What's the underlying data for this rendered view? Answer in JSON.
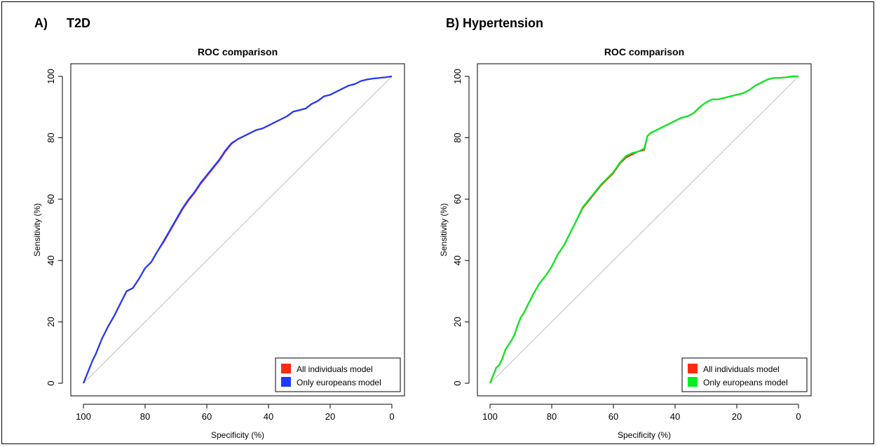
{
  "panels": {
    "a_label": "A)",
    "a_title": "T2D",
    "b_label": "B) Hypertension"
  },
  "chart_data": [
    {
      "type": "line",
      "title": "ROC comparison",
      "xlabel": "Specificity (%)",
      "ylabel": "Sensitivity (%)",
      "xlim": [
        100,
        0
      ],
      "ylim": [
        0,
        100
      ],
      "x_ticks": [
        100,
        80,
        60,
        40,
        20,
        0
      ],
      "y_ticks": [
        0,
        20,
        40,
        60,
        80,
        100
      ],
      "legend_position": "bottom-right",
      "diagonal_color": "#c8c8c8",
      "series": [
        {
          "name": "All individuals model",
          "color": "#ff2a12",
          "x": [
            100,
            99,
            98,
            97,
            96,
            95,
            94,
            92,
            90,
            88,
            86,
            84,
            82,
            80,
            78,
            76,
            74,
            72,
            70,
            68,
            66,
            64,
            62,
            60,
            58,
            56,
            54,
            52,
            50,
            48,
            46,
            44,
            42,
            40,
            38,
            36,
            34,
            32,
            30,
            28,
            26,
            24,
            22,
            20,
            18,
            16,
            14,
            12,
            10,
            8,
            6,
            4,
            2,
            0
          ],
          "y": [
            0,
            2.5,
            5,
            7.5,
            9.5,
            12,
            14.5,
            18.5,
            22,
            26,
            30,
            31,
            34,
            37.5,
            39.5,
            43,
            46,
            49.5,
            53,
            56.5,
            59.5,
            62,
            65,
            67.5,
            70,
            72.5,
            75.5,
            78,
            79.5,
            80.5,
            81.5,
            82.5,
            83,
            84,
            85,
            86,
            87,
            88.5,
            89,
            89.5,
            91,
            92,
            93.5,
            94,
            95,
            96,
            97,
            97.5,
            98.5,
            99,
            99.3,
            99.5,
            99.7,
            100
          ]
        },
        {
          "name": "Only europeans model",
          "color": "#1c3cff",
          "x": [
            100,
            99,
            98,
            97,
            96,
            95,
            94,
            92,
            90,
            88,
            86,
            84,
            82,
            80,
            78,
            76,
            74,
            72,
            70,
            68,
            66,
            64,
            62,
            60,
            58,
            56,
            54,
            52,
            50,
            48,
            46,
            44,
            42,
            40,
            38,
            36,
            34,
            32,
            30,
            28,
            26,
            24,
            22,
            20,
            18,
            16,
            14,
            12,
            10,
            8,
            6,
            4,
            2,
            0
          ],
          "y": [
            0,
            2.5,
            5,
            7.5,
            9.5,
            12,
            14.5,
            18.5,
            22,
            26,
            30,
            31,
            34,
            37.5,
            39.5,
            43,
            46.3,
            49.8,
            53.3,
            56.8,
            59.8,
            62.3,
            65.3,
            67.8,
            70.3,
            72.8,
            75.8,
            78.2,
            79.5,
            80.5,
            81.5,
            82.5,
            83,
            84,
            85,
            86,
            87,
            88.5,
            89,
            89.5,
            91,
            92,
            93.5,
            94,
            95,
            96,
            97,
            97.5,
            98.5,
            99,
            99.3,
            99.5,
            99.7,
            100
          ]
        }
      ]
    },
    {
      "type": "line",
      "title": "ROC comparison",
      "xlabel": "Specificity (%)",
      "ylabel": "Sensitivity (%)",
      "xlim": [
        100,
        0
      ],
      "ylim": [
        0,
        100
      ],
      "x_ticks": [
        100,
        80,
        60,
        40,
        20,
        0
      ],
      "y_ticks": [
        0,
        20,
        40,
        60,
        80,
        100
      ],
      "legend_position": "bottom-right",
      "diagonal_color": "#c8c8c8",
      "series": [
        {
          "name": "All individuals model",
          "color": "#ff2a12",
          "x": [
            100,
            99,
            98,
            97,
            96,
            95,
            94,
            93,
            92,
            91,
            90,
            89,
            88,
            86,
            84,
            82,
            80,
            78,
            76,
            74,
            72,
            70,
            68,
            66,
            64,
            62,
            60,
            58,
            56,
            54,
            52,
            50,
            49,
            48,
            46,
            44,
            42,
            40,
            38,
            36,
            34,
            32,
            30,
            28,
            26,
            24,
            22,
            20,
            18,
            16,
            14,
            12,
            10,
            8,
            6,
            4,
            2,
            0
          ],
          "y": [
            0,
            2.5,
            5,
            6,
            8,
            11,
            12.5,
            14,
            16,
            19,
            21.5,
            23,
            25,
            29,
            32.5,
            35,
            38,
            42,
            45,
            49,
            53,
            57,
            59.5,
            62,
            64.5,
            66.5,
            68.5,
            71.5,
            73.5,
            74.5,
            75.5,
            76,
            80.5,
            81.5,
            82.5,
            83.5,
            84.5,
            85.5,
            86.5,
            87,
            88,
            90,
            91.5,
            92.5,
            92.5,
            93,
            93.5,
            94,
            94.5,
            95.5,
            97,
            98,
            99,
            99.5,
            99.5,
            99.7,
            100,
            100
          ]
        },
        {
          "name": "Only europeans model",
          "color": "#00ee22",
          "x": [
            100,
            99,
            98,
            97,
            96,
            95,
            94,
            93,
            92,
            91,
            90,
            89,
            88,
            86,
            84,
            82,
            80,
            78,
            76,
            74,
            72,
            70,
            68,
            66,
            64,
            62,
            60,
            58,
            56,
            54,
            52,
            50,
            49,
            48,
            46,
            44,
            42,
            40,
            38,
            36,
            34,
            32,
            30,
            28,
            26,
            24,
            22,
            20,
            18,
            16,
            14,
            12,
            10,
            8,
            6,
            4,
            2,
            0
          ],
          "y": [
            0,
            2.5,
            5,
            6,
            8,
            11,
            12.5,
            14,
            16,
            19,
            21.5,
            23,
            25,
            29,
            32.5,
            35,
            38,
            42,
            45,
            49,
            53,
            57.3,
            59.8,
            62.3,
            64.8,
            66.8,
            68.8,
            71.8,
            74,
            75,
            75.5,
            76.5,
            80.5,
            81.5,
            82.5,
            83.5,
            84.5,
            85.5,
            86.5,
            87,
            88,
            90,
            91.5,
            92.5,
            92.5,
            93,
            93.5,
            94,
            94.5,
            95.5,
            97,
            98,
            99,
            99.5,
            99.5,
            99.7,
            100,
            100
          ]
        }
      ]
    }
  ]
}
